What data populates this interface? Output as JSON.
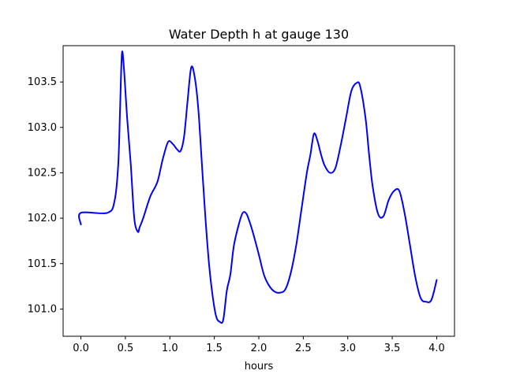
{
  "chart_data": {
    "type": "line",
    "title": "Water Depth h at gauge 130",
    "xlabel": "hours",
    "ylabel": "",
    "xlim": [
      -0.2,
      4.2
    ],
    "ylim": [
      100.7,
      103.9
    ],
    "xticks": [
      0.0,
      0.5,
      1.0,
      1.5,
      2.0,
      2.5,
      3.0,
      3.5,
      4.0
    ],
    "xtick_labels": [
      "0.0",
      "0.5",
      "1.0",
      "1.5",
      "2.0",
      "2.5",
      "3.0",
      "3.5",
      "4.0"
    ],
    "yticks": [
      101.0,
      101.5,
      102.0,
      102.5,
      103.0,
      103.5
    ],
    "ytick_labels": [
      "101.0",
      "101.5",
      "102.0",
      "102.5",
      "103.0",
      "103.5"
    ],
    "grid": false,
    "series": [
      {
        "color": "#0000ff",
        "x": [
          0.0,
          0.0,
          0.3,
          0.38,
          0.42,
          0.44,
          0.46,
          0.48,
          0.52,
          0.56,
          0.6,
          0.64,
          0.66,
          0.7,
          0.78,
          0.86,
          0.92,
          0.98,
          1.03,
          1.08,
          1.12,
          1.16,
          1.2,
          1.24,
          1.28,
          1.32,
          1.36,
          1.4,
          1.44,
          1.48,
          1.52,
          1.56,
          1.6,
          1.64,
          1.68,
          1.72,
          1.78,
          1.82,
          1.86,
          1.9,
          1.94,
          2.0,
          2.06,
          2.12,
          2.18,
          2.24,
          2.3,
          2.36,
          2.42,
          2.48,
          2.54,
          2.58,
          2.62,
          2.66,
          2.7,
          2.74,
          2.8,
          2.86,
          2.92,
          2.98,
          3.04,
          3.1,
          3.14,
          3.2,
          3.24,
          3.28,
          3.34,
          3.4,
          3.46,
          3.52,
          3.58,
          3.64,
          3.7,
          3.76,
          3.82,
          3.88,
          3.94,
          4.0
        ],
        "y": [
          101.93,
          102.06,
          102.06,
          102.2,
          102.6,
          103.2,
          103.8,
          103.7,
          103.1,
          102.6,
          102.0,
          101.85,
          101.9,
          102.0,
          102.24,
          102.4,
          102.65,
          102.84,
          102.82,
          102.76,
          102.74,
          102.9,
          103.3,
          103.66,
          103.55,
          103.2,
          102.6,
          102.0,
          101.5,
          101.15,
          100.92,
          100.86,
          100.88,
          101.2,
          101.38,
          101.7,
          101.95,
          102.06,
          102.05,
          101.95,
          101.82,
          101.6,
          101.37,
          101.25,
          101.19,
          101.18,
          101.22,
          101.4,
          101.7,
          102.1,
          102.5,
          102.7,
          102.93,
          102.85,
          102.7,
          102.58,
          102.5,
          102.55,
          102.8,
          103.1,
          103.4,
          103.49,
          103.45,
          103.1,
          102.7,
          102.35,
          102.05,
          102.02,
          102.2,
          102.3,
          102.3,
          102.05,
          101.7,
          101.35,
          101.12,
          101.08,
          101.1,
          101.32
        ]
      }
    ]
  }
}
